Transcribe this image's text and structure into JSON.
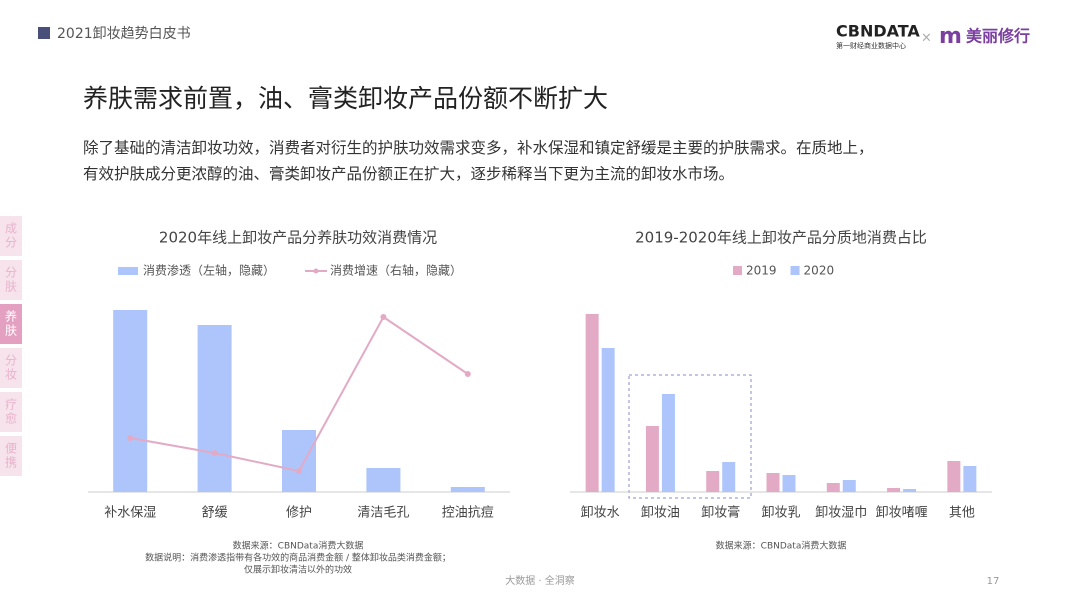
{
  "header": {
    "title": "2021卸妆趋势白皮书",
    "logo_left": "CBNDATA",
    "logo_left_sub": "第一财经商业数据中心",
    "logo_sep": "×",
    "logo_right": "美丽修行"
  },
  "title": "养肤需求前置，油、膏类卸妆产品份额不断扩大",
  "body": [
    "除了基础的清洁卸妆功效，消费者对衍生的护肤功效需求变多，补水保湿和镇定舒缓是主要的护肤需求。在质地上，",
    "有效护肤成分更浓醇的油、膏类卸妆产品份额正在扩大，逐步稀释当下更为主流的卸妆水市场。"
  ],
  "sidebar": [
    "成分",
    "分肤",
    "养肤",
    "分妆",
    "疗愈",
    "便携"
  ],
  "sidebar_active": 2,
  "chart_data": [
    {
      "type": "bar",
      "title": "2020年线上卸妆产品分养肤功效消费情况",
      "categories": [
        "补水保湿",
        "舒缓",
        "修护",
        "清洁毛孔",
        "控油抗痘"
      ],
      "series": [
        {
          "name": "消费渗透（左轴，隐藏）",
          "type": "bar",
          "color": "#adc5fb",
          "values": [
            182,
            167,
            62,
            24,
            5
          ]
        },
        {
          "name": "消费增速（右轴，隐藏）",
          "type": "line",
          "axis": "y2",
          "color": "#e3aac6",
          "values": [
            54,
            39,
            21,
            175,
            118
          ]
        }
      ],
      "ylim": [
        0,
        200
      ],
      "y2lim": [
        0,
        200
      ],
      "notes": [
        "数据来源：CBNData消费大数据",
        "数据说明：消费渗透指带有各功效的商品消费金额 / 整体卸妆品类消费金额；",
        "仅展示卸妆清洁以外的功效"
      ]
    },
    {
      "type": "bar",
      "title": "2019-2020年线上卸妆产品分质地消费占比",
      "categories": [
        "卸妆水",
        "卸妆油",
        "卸妆膏",
        "卸妆乳",
        "卸妆湿巾",
        "卸妆啫喱",
        "其他"
      ],
      "series": [
        {
          "name": "2019",
          "color": "#e3aac6",
          "values": [
            178,
            66,
            21,
            19,
            9,
            4,
            31
          ]
        },
        {
          "name": "2020",
          "color": "#adc5fb",
          "values": [
            144,
            98,
            30,
            17,
            12,
            3,
            26
          ]
        }
      ],
      "ylim": [
        0,
        200
      ],
      "notes": [
        "数据来源：CBNData消费大数据"
      ]
    }
  ],
  "footer": "大数据 · 全洞察",
  "page": "17"
}
